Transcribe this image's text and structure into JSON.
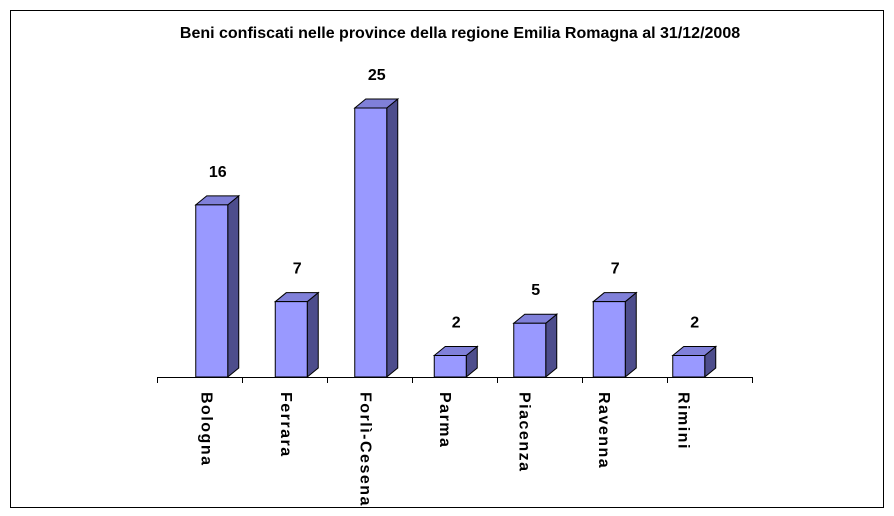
{
  "chart_data": {
    "type": "bar3d",
    "title": "Beni confiscati nelle province della regione Emilia Romagna al 31/12/2008",
    "categories": [
      "Bologna",
      "Ferrara",
      "Forlì-Cesena",
      "Parma",
      "Piacenza",
      "Ravenna",
      "Rimini"
    ],
    "values": [
      16,
      7,
      25,
      2,
      5,
      7,
      2
    ],
    "color": "#9999ff"
  }
}
